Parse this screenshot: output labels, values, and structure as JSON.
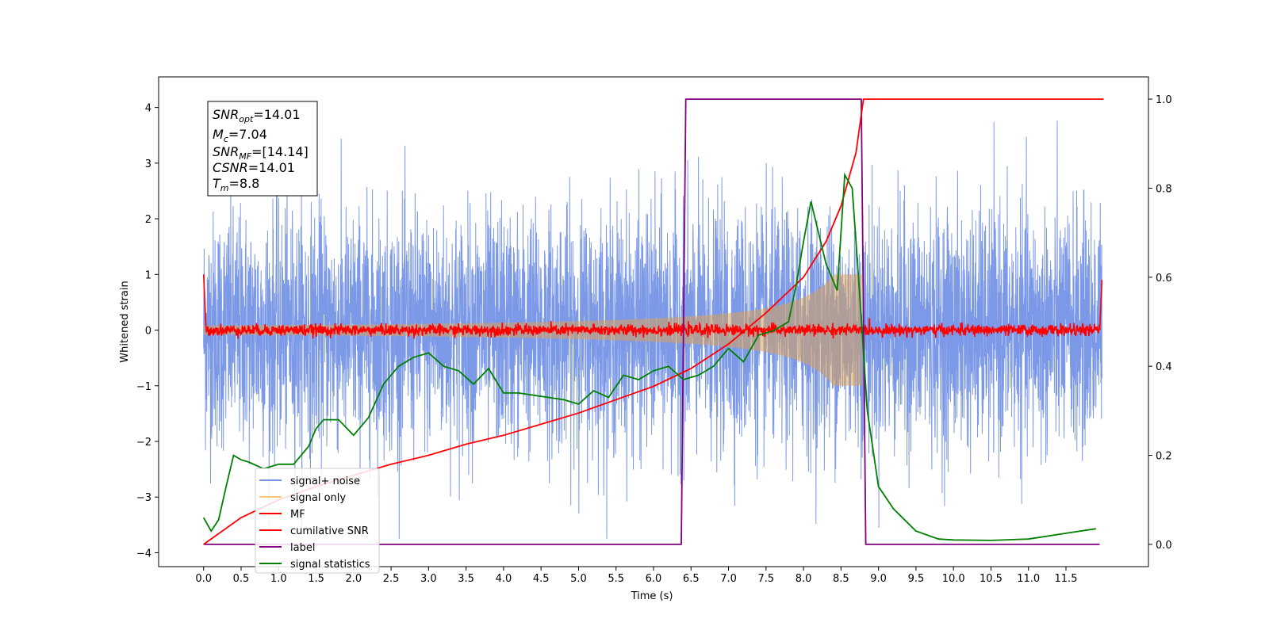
{
  "chart_data": {
    "type": "line",
    "xlabel": "Time (s)",
    "ylabel": "Whitened strain",
    "xlim": [
      -0.6,
      12.6
    ],
    "ylim_left": [
      -4.25,
      4.55
    ],
    "ylim_right": [
      -0.05,
      1.05
    ],
    "x_ticks": [
      "0.0",
      "0.5",
      "1.0",
      "1.5",
      "2.0",
      "2.5",
      "3.0",
      "3.5",
      "4.0",
      "4.5",
      "5.0",
      "5.5",
      "6.0",
      "6.5",
      "7.0",
      "7.5",
      "8.0",
      "8.5",
      "9.0",
      "9.5",
      "10.0",
      "10.5",
      "11.0",
      "11.5"
    ],
    "y_ticks_left": [
      "−4",
      "−3",
      "−2",
      "−1",
      "0",
      "1",
      "2",
      "3",
      "4"
    ],
    "y_ticks_right": [
      "0.0",
      "0.2",
      "0.4",
      "0.6",
      "0.8",
      "1.0"
    ],
    "grid": false,
    "legend_placement": "lower-left",
    "annotation": {
      "lines": [
        {
          "sym": "SNR",
          "sub": "opt",
          "val": "=14.01"
        },
        {
          "sym": "M",
          "sub": "c",
          "val": "=7.04"
        },
        {
          "sym": "SNR",
          "sub": "MF",
          "val": "=[14.14]"
        },
        {
          "sym": "CSNR",
          "sub": "",
          "val": "=14.01"
        },
        {
          "sym": "T",
          "sub": "m",
          "val": "=8.8"
        }
      ]
    },
    "series": [
      {
        "name": "signal+ noise",
        "color": "#7594e6",
        "axis": "left",
        "description": "whitened noise, amplitude about ±2.5 with peaks to ±4"
      },
      {
        "name": "signal only",
        "color": "#ffc875",
        "axis": "left",
        "chirp_end": 8.8,
        "peak_amplitude": 1.0
      },
      {
        "name": "MF",
        "color": "#ff0000",
        "axis": "left",
        "description": "matched filter output near 0, spike 1.0 at edges"
      },
      {
        "name": "cumilative SNR",
        "color": "#ff0000",
        "axis": "right",
        "x": [
          0.0,
          0.5,
          1.0,
          1.5,
          2.0,
          2.5,
          3.0,
          3.5,
          4.0,
          4.5,
          5.0,
          5.5,
          6.0,
          6.5,
          7.0,
          7.5,
          8.0,
          8.3,
          8.5,
          8.7,
          8.8,
          12.0
        ],
        "y": [
          0.0,
          0.06,
          0.1,
          0.13,
          0.155,
          0.18,
          0.2,
          0.225,
          0.245,
          0.27,
          0.295,
          0.325,
          0.355,
          0.395,
          0.45,
          0.52,
          0.6,
          0.68,
          0.76,
          0.88,
          1.0,
          1.0
        ]
      },
      {
        "name": "label",
        "color": "#800080",
        "axis": "right",
        "x": [
          0.0,
          6.37,
          6.43,
          8.77,
          8.83,
          11.95
        ],
        "y": [
          0.0,
          0.0,
          1.0,
          1.0,
          0.0,
          0.0
        ]
      },
      {
        "name": "signal statistics",
        "color": "#008000",
        "axis": "right",
        "x": [
          0.0,
          0.1,
          0.2,
          0.3,
          0.4,
          0.5,
          0.6,
          0.8,
          1.0,
          1.2,
          1.4,
          1.5,
          1.6,
          1.8,
          2.0,
          2.2,
          2.4,
          2.6,
          2.8,
          3.0,
          3.2,
          3.4,
          3.6,
          3.8,
          4.0,
          4.2,
          4.4,
          4.6,
          4.8,
          5.0,
          5.2,
          5.4,
          5.6,
          5.8,
          6.0,
          6.2,
          6.4,
          6.6,
          6.8,
          7.0,
          7.2,
          7.4,
          7.6,
          7.8,
          7.9,
          8.0,
          8.1,
          8.3,
          8.45,
          8.55,
          8.65,
          8.75,
          8.85,
          9.0,
          9.2,
          9.5,
          9.8,
          10.0,
          10.5,
          11.0,
          11.5,
          11.9
        ],
        "y": [
          0.06,
          0.03,
          0.055,
          0.13,
          0.2,
          0.19,
          0.185,
          0.17,
          0.18,
          0.18,
          0.22,
          0.26,
          0.28,
          0.28,
          0.245,
          0.285,
          0.36,
          0.4,
          0.42,
          0.43,
          0.4,
          0.39,
          0.36,
          0.395,
          0.34,
          0.34,
          0.335,
          0.33,
          0.325,
          0.315,
          0.345,
          0.33,
          0.38,
          0.37,
          0.39,
          0.4,
          0.37,
          0.38,
          0.4,
          0.44,
          0.41,
          0.47,
          0.48,
          0.5,
          0.58,
          0.68,
          0.77,
          0.63,
          0.57,
          0.83,
          0.8,
          0.56,
          0.3,
          0.13,
          0.08,
          0.03,
          0.012,
          0.01,
          0.009,
          0.012,
          0.025,
          0.035
        ]
      }
    ]
  }
}
